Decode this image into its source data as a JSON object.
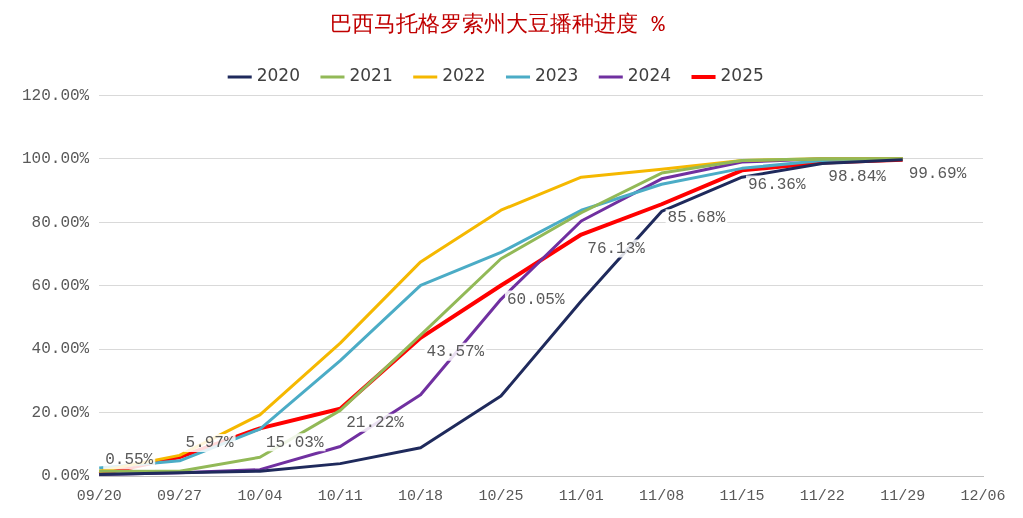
{
  "chart_data": {
    "type": "line",
    "title": "巴西马托格罗索州大豆播种进度 %",
    "categories": [
      "09/20",
      "09/27",
      "10/04",
      "10/11",
      "10/18",
      "10/25",
      "11/01",
      "11/08",
      "11/15",
      "11/22",
      "11/29",
      "12/06"
    ],
    "series": [
      {
        "name": "2020",
        "color": "#1f2a5c",
        "values": [
          0.5,
          1,
          1.5,
          3.9,
          8.9,
          25.2,
          55.2,
          83.4,
          94.2,
          98.5,
          99.7,
          null
        ]
      },
      {
        "name": "2021",
        "color": "#92b957",
        "values": [
          1.5,
          1.5,
          5.9,
          20.7,
          44.4,
          68.5,
          83,
          95.5,
          99.5,
          100,
          100,
          null
        ]
      },
      {
        "name": "2022",
        "color": "#f5b800",
        "values": [
          1.5,
          6.5,
          19.3,
          41.9,
          67.5,
          83.8,
          94.2,
          96.7,
          99.5,
          100,
          100,
          null
        ]
      },
      {
        "name": "2023",
        "color": "#4bacc6",
        "values": [
          2.5,
          4.8,
          14.8,
          36.4,
          60.1,
          70.5,
          83.8,
          92,
          97,
          99.5,
          100,
          null
        ]
      },
      {
        "name": "2024",
        "color": "#7030a0",
        "values": [
          0.5,
          1,
          2,
          9.3,
          25.6,
          55.7,
          80.4,
          93.7,
          99,
          100,
          100,
          null
        ]
      },
      {
        "name": "2025",
        "color": "#ff0000",
        "values": [
          0.55,
          5.97,
          15.03,
          21.22,
          43.57,
          60.05,
          76.13,
          85.68,
          96.36,
          98.84,
          99.69,
          null
        ],
        "value_labels": [
          "0.55%",
          "5.97%",
          "15.03%",
          "21.22%",
          "43.57%",
          "60.05%",
          "76.13%",
          "85.68%",
          "96.36%",
          "98.84%",
          "99.69%",
          null
        ]
      }
    ],
    "ylim": [
      0,
      120
    ],
    "yticks": [
      {
        "value": 0,
        "label": "0.00%"
      },
      {
        "value": 20,
        "label": "20.00%"
      },
      {
        "value": 40,
        "label": "40.00%"
      },
      {
        "value": 60,
        "label": "60.00%"
      },
      {
        "value": 80,
        "label": "80.00%"
      },
      {
        "value": 100,
        "label": "100.00%"
      },
      {
        "value": 120,
        "label": "120.00%"
      }
    ],
    "grid": "y",
    "legend": "top",
    "marker": "none",
    "line_style": "solid"
  }
}
